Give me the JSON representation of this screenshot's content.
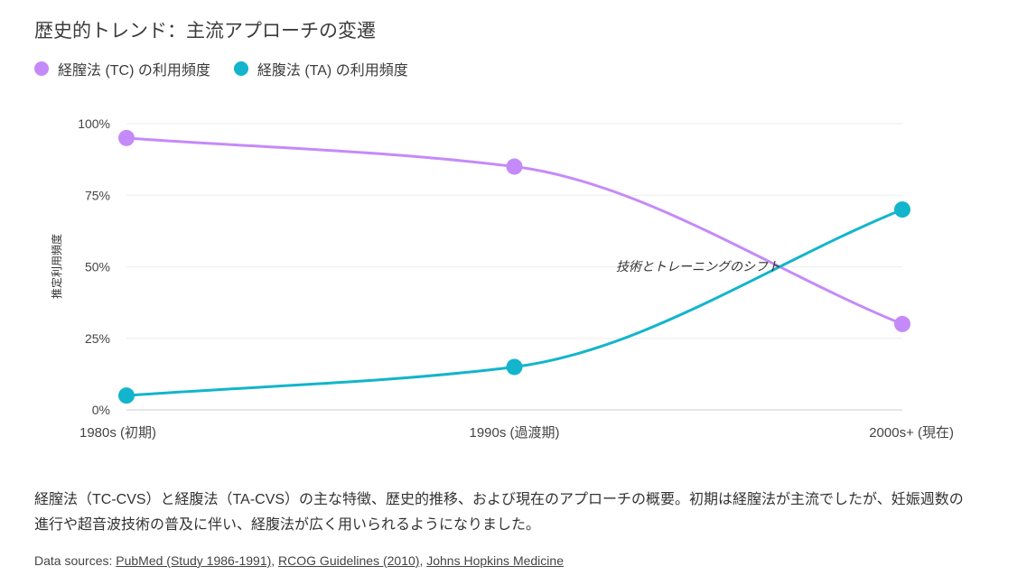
{
  "title": "歴史的トレンド：主流アプローチの変遷",
  "chart_data": {
    "type": "line",
    "categories": [
      "1980s (初期)",
      "1990s (過渡期)",
      "2000s+ (現在)"
    ],
    "ylabel": "推定利用頻度",
    "ylim": [
      0,
      100
    ],
    "yticks": [
      "0%",
      "25%",
      "50%",
      "75%",
      "100%"
    ],
    "ytick_values": [
      0,
      25,
      50,
      75,
      100
    ],
    "grid": true,
    "legend_position": "top-left",
    "series": [
      {
        "name": "経膣法 (TC) の利用頻度",
        "values": [
          95,
          85,
          30
        ],
        "color": "#c58af9"
      },
      {
        "name": "経腹法 (TA) の利用頻度",
        "values": [
          5,
          15,
          70
        ],
        "color": "#12b5cb"
      }
    ],
    "annotation": "技術とトレーニングのシフト"
  },
  "description": "経膣法（TC-CVS）と経腹法（TA-CVS）の主な特徴、歴史的推移、および現在のアプローチの概要。初期は経膣法が主流でしたが、妊娠週数の進行や超音波技術の普及に伴い、経腹法が広く用いられるようになりました。",
  "sources": {
    "prefix": "Data sources: ",
    "links": [
      "PubMed (Study 1986-1991)",
      "RCOG Guidelines (2010)",
      "Johns Hopkins Medicine"
    ]
  }
}
